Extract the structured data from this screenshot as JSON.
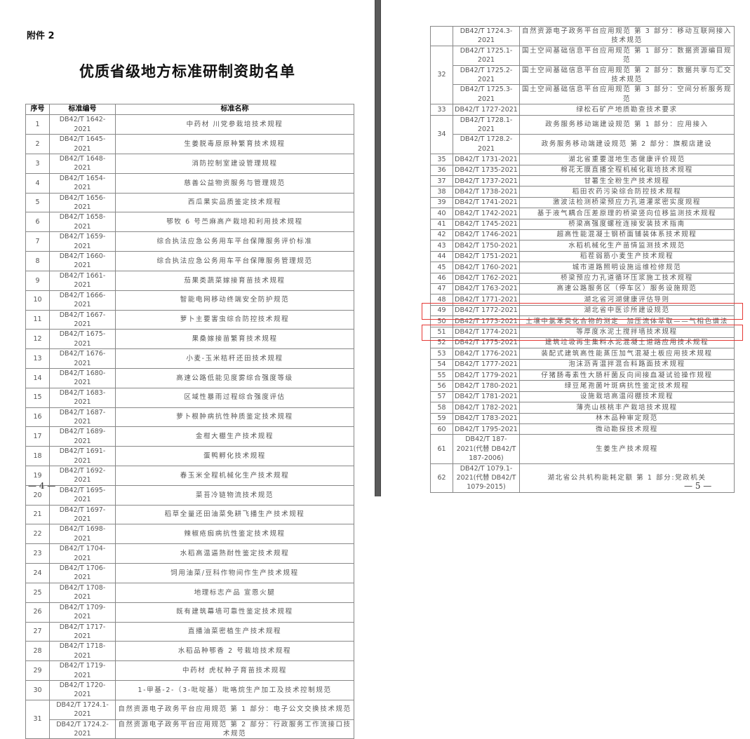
{
  "left_page": {
    "attachment_label": "附件 2",
    "title": "优质省级地方标准研制资助名单",
    "headers": [
      "序号",
      "标准编号",
      "标准名称"
    ],
    "rows": [
      {
        "no": "1",
        "items": [
          {
            "code": "DB42/T 1642-2021",
            "name": "中药材 川党参栽培技术规程"
          }
        ]
      },
      {
        "no": "2",
        "items": [
          {
            "code": "DB42/T 1645-2021",
            "name": "生姜脱毒原原种繁育技术规程"
          }
        ]
      },
      {
        "no": "3",
        "items": [
          {
            "code": "DB42/T 1648-2021",
            "name": "消防控制室建设管理规程"
          }
        ]
      },
      {
        "no": "4",
        "items": [
          {
            "code": "DB42/T 1654-2021",
            "name": "慈善公益物资服务与管理规范"
          }
        ]
      },
      {
        "no": "5",
        "items": [
          {
            "code": "DB42/T 1656-2021",
            "name": "西瓜果实品质鉴定技术规程"
          }
        ]
      },
      {
        "no": "6",
        "items": [
          {
            "code": "DB42/T 1658-2021",
            "name": "鄂牧 6 号苎麻高产栽培和利用技术规程"
          }
        ]
      },
      {
        "no": "7",
        "items": [
          {
            "code": "DB42/T 1659-2021",
            "name": "综合执法应急公务用车平台保障服务评价标准"
          }
        ]
      },
      {
        "no": "8",
        "items": [
          {
            "code": "DB42/T 1660-2021",
            "name": "综合执法应急公务用车平台保障服务管理规范"
          }
        ]
      },
      {
        "no": "9",
        "items": [
          {
            "code": "DB42/T 1661-2021",
            "name": "茄果类蔬菜嫁接育苗技术规程"
          }
        ]
      },
      {
        "no": "10",
        "items": [
          {
            "code": "DB42/T 1666-2021",
            "name": "智能电网移动终端安全防护规范"
          }
        ]
      },
      {
        "no": "11",
        "items": [
          {
            "code": "DB42/T 1667-2021",
            "name": "萝卜主要害虫综合防控技术规程"
          }
        ]
      },
      {
        "no": "12",
        "items": [
          {
            "code": "DB42/T 1675-2021",
            "name": "果桑嫁接苗繁育技术规程"
          }
        ]
      },
      {
        "no": "13",
        "items": [
          {
            "code": "DB42/T 1676-2021",
            "name": "小麦-玉米秸秆还田技术规程"
          }
        ]
      },
      {
        "no": "14",
        "items": [
          {
            "code": "DB42/T 1680-2021",
            "name": "高速公路低能见度雾综合强度等级"
          }
        ]
      },
      {
        "no": "15",
        "items": [
          {
            "code": "DB42/T 1683-2021",
            "name": "区域性暴雨过程综合强度评估"
          }
        ]
      },
      {
        "no": "16",
        "items": [
          {
            "code": "DB42/T 1687-2021",
            "name": "萝卜根肿病抗性种质鉴定技术规程"
          }
        ]
      },
      {
        "no": "17",
        "items": [
          {
            "code": "DB42/T 1689-2021",
            "name": "金柑大棚生产技术规程"
          }
        ]
      },
      {
        "no": "18",
        "items": [
          {
            "code": "DB42/T 1691-2021",
            "name": "蛋鸭孵化技术规程"
          }
        ]
      },
      {
        "no": "19",
        "items": [
          {
            "code": "DB42/T 1692-2021",
            "name": "春玉米全程机械化生产技术规程"
          }
        ]
      },
      {
        "no": "20",
        "items": [
          {
            "code": "DB42/T 1695-2021",
            "name": "菜苔冷链物流技术规范"
          }
        ]
      },
      {
        "no": "21",
        "items": [
          {
            "code": "DB42/T 1697-2021",
            "name": "稻草全量还田油菜免耕飞播生产技术规程"
          }
        ]
      },
      {
        "no": "22",
        "items": [
          {
            "code": "DB42/T 1698-2021",
            "name": "辣椒疮痂病抗性鉴定技术规程"
          }
        ]
      },
      {
        "no": "23",
        "items": [
          {
            "code": "DB42/T 1704-2021",
            "name": "水稻高温逼熟耐性鉴定技术规程"
          }
        ]
      },
      {
        "no": "24",
        "items": [
          {
            "code": "DB42/T 1706-2021",
            "name": "饲用油菜/豆科作物间作生产技术规程"
          }
        ]
      },
      {
        "no": "25",
        "items": [
          {
            "code": "DB42/T 1708-2021",
            "name": "地理标志产品 宣恩火腿"
          }
        ]
      },
      {
        "no": "26",
        "items": [
          {
            "code": "DB42/T 1709-2021",
            "name": "既有建筑幕墙可靠性鉴定技术规程"
          }
        ]
      },
      {
        "no": "27",
        "items": [
          {
            "code": "DB42/T 1717-2021",
            "name": "直播油菜密植生产技术规程"
          }
        ]
      },
      {
        "no": "28",
        "items": [
          {
            "code": "DB42/T 1718-2021",
            "name": "水稻品种鄂香 2 号栽培技术规程"
          }
        ]
      },
      {
        "no": "29",
        "items": [
          {
            "code": "DB42/T 1719-2021",
            "name": "中药材 虎杖种子育苗技术规程"
          }
        ]
      },
      {
        "no": "30",
        "items": [
          {
            "code": "DB42/T 1720-2021",
            "name": "1-甲基-2-（3-吡啶基）吡咯烷生产加工及技术控制规范"
          }
        ]
      },
      {
        "no": "31",
        "items": [
          {
            "code": "DB42/T 1724.1-2021",
            "name": "自然资源电子政务平台应用规范 第 1 部分：电子公文交换技术规范"
          },
          {
            "code": "DB42/T 1724.2-2021",
            "name": "自然资源电子政务平台应用规范 第 2 部分：行政服务工作流接口技术规范"
          }
        ]
      }
    ],
    "page_number": "— 4 —"
  },
  "right_page": {
    "rows": [
      {
        "no": "",
        "items": [
          {
            "code": "DB42/T 1724.3-2021",
            "name": "自然资源电子政务平台应用规范 第 3 部分：移动互联网接入技术规范"
          }
        ]
      },
      {
        "no": "32",
        "items": [
          {
            "code": "DB42/T 1725.1-2021",
            "name": "国土空间基础信息平台应用规范 第 1 部分：数据资源编目规范"
          },
          {
            "code": "DB42/T 1725.2-2021",
            "name": "国土空间基础信息平台应用规范 第 2 部分：数据共享与汇交技术规范"
          },
          {
            "code": "DB42/T 1725.3-2021",
            "name": "国土空间基础信息平台应用规范 第 3 部分：空间分析服务规范"
          }
        ]
      },
      {
        "no": "33",
        "items": [
          {
            "code": "DB42/T 1727-2021",
            "name": "绿松石矿产地质勘查技术要求"
          }
        ]
      },
      {
        "no": "34",
        "items": [
          {
            "code": "DB42/T 1728.1-2021",
            "name": "政务服务移动端建设规范 第 1 部分：应用接入"
          },
          {
            "code": "DB42/T 1728.2-2021",
            "name": "政务服务移动端建设规范 第 2 部分：旗舰店建设"
          }
        ]
      },
      {
        "no": "35",
        "items": [
          {
            "code": "DB42/T 1731-2021",
            "name": "湖北省重要湿地生态健康评价规范"
          }
        ]
      },
      {
        "no": "36",
        "items": [
          {
            "code": "DB42/T 1735-2021",
            "name": "棉花无膜直播全程机械化栽培技术规程"
          }
        ]
      },
      {
        "no": "37",
        "items": [
          {
            "code": "DB42/T 1737-2021",
            "name": "甘薯生全粉生产技术规程"
          }
        ]
      },
      {
        "no": "38",
        "items": [
          {
            "code": "DB42/T 1738-2021",
            "name": "稻田农药污染综合防控技术规程"
          }
        ]
      },
      {
        "no": "39",
        "items": [
          {
            "code": "DB42/T 1741-2021",
            "name": "激波法检测桥梁预应力孔道灌浆密实度规程"
          }
        ]
      },
      {
        "no": "40",
        "items": [
          {
            "code": "DB42/T 1742-2021",
            "name": "基于液气耦合压差原理的桥梁竖向位移监测技术规程"
          }
        ]
      },
      {
        "no": "41",
        "items": [
          {
            "code": "DB42/T 1745-2021",
            "name": "桥梁高强度螺栓连接安装技术指南"
          }
        ]
      },
      {
        "no": "42",
        "items": [
          {
            "code": "DB42/T 1746-2021",
            "name": "超高性能混凝土钢桥面铺装体系技术规程"
          }
        ]
      },
      {
        "no": "43",
        "items": [
          {
            "code": "DB42/T 1750-2021",
            "name": "水稻机械化生产苗情监测技术规范"
          }
        ]
      },
      {
        "no": "44",
        "items": [
          {
            "code": "DB42/T 1751-2021",
            "name": "稻茬弱筋小麦生产技术规程"
          }
        ]
      },
      {
        "no": "45",
        "items": [
          {
            "code": "DB42/T 1760-2021",
            "name": "城市道路照明设施运维检修规范"
          }
        ]
      },
      {
        "no": "46",
        "items": [
          {
            "code": "DB42/T 1762-2021",
            "name": "桥梁预应力孔道循环压浆施工技术规程"
          }
        ]
      },
      {
        "no": "47",
        "items": [
          {
            "code": "DB42/T 1763-2021",
            "name": "高速公路服务区（停车区）服务设施规范"
          }
        ]
      },
      {
        "no": "48",
        "items": [
          {
            "code": "DB42/T 1771-2021",
            "name": "湖北省河湖健康评估导则"
          }
        ]
      },
      {
        "no": "49",
        "items": [
          {
            "code": "DB42/T 1772-2021",
            "name": "湖北省中医诊所建设规范"
          }
        ]
      },
      {
        "no": "50",
        "items": [
          {
            "code": "DB42/T 1773-2021",
            "name": "土壤中氯苯类化合物的测定　加压流体萃取——气相色谱法"
          }
        ]
      },
      {
        "no": "51",
        "items": [
          {
            "code": "DB42/T 1774-2021",
            "name": "等厚度水泥土搅拌墙技术规程"
          }
        ]
      },
      {
        "no": "52",
        "highlighted": true,
        "items": [
          {
            "code": "DB42/T 1775-2021",
            "name": "建筑垃圾再生集料水泥混凝土道路应用技术规程"
          }
        ]
      },
      {
        "no": "53",
        "items": [
          {
            "code": "DB42/T 1776-2021",
            "name": "装配式建筑高性能蒸压加气混凝土板应用技术规程"
          }
        ]
      },
      {
        "no": "54",
        "highlighted": true,
        "items": [
          {
            "code": "DB42/T 1777-2021",
            "name": "泡沫沥青温拌混合料路面技术规程"
          }
        ]
      },
      {
        "no": "55",
        "items": [
          {
            "code": "DB42/T 1779-2021",
            "name": "仔猪肠毒素性大肠杆菌反向间接血凝试验操作规程"
          }
        ]
      },
      {
        "no": "56",
        "items": [
          {
            "code": "DB42/T 1780-2021",
            "name": "绿豆尾孢菌叶斑病抗性鉴定技术规程"
          }
        ]
      },
      {
        "no": "57",
        "items": [
          {
            "code": "DB42/T 1781-2021",
            "name": "设施栽培高温闷棚技术规程"
          }
        ]
      },
      {
        "no": "58",
        "items": [
          {
            "code": "DB42/T 1782-2021",
            "name": "薄壳山核桃丰产栽培技术规程"
          }
        ]
      },
      {
        "no": "59",
        "items": [
          {
            "code": "DB42/T 1783-2021",
            "name": "林木品种审定规范"
          }
        ]
      },
      {
        "no": "60",
        "items": [
          {
            "code": "DB42/T 1795-2021",
            "name": "微动勘探技术规程"
          }
        ]
      },
      {
        "no": "61",
        "items": [
          {
            "code": "DB42/T 187-2021(代替 DB42/T 187-2006)",
            "name": "生姜生产技术规程"
          }
        ]
      },
      {
        "no": "62",
        "items": [
          {
            "code": "DB42/T 1079.1-2021(代替 DB42/T 1079-2015)",
            "name": "湖北省公共机构能耗定额 第 1 部分:党政机关"
          }
        ]
      }
    ],
    "page_number": "— 5 —"
  },
  "colors": {
    "highlight_box": "#e53935",
    "page_divider": "#5a5a5a"
  }
}
